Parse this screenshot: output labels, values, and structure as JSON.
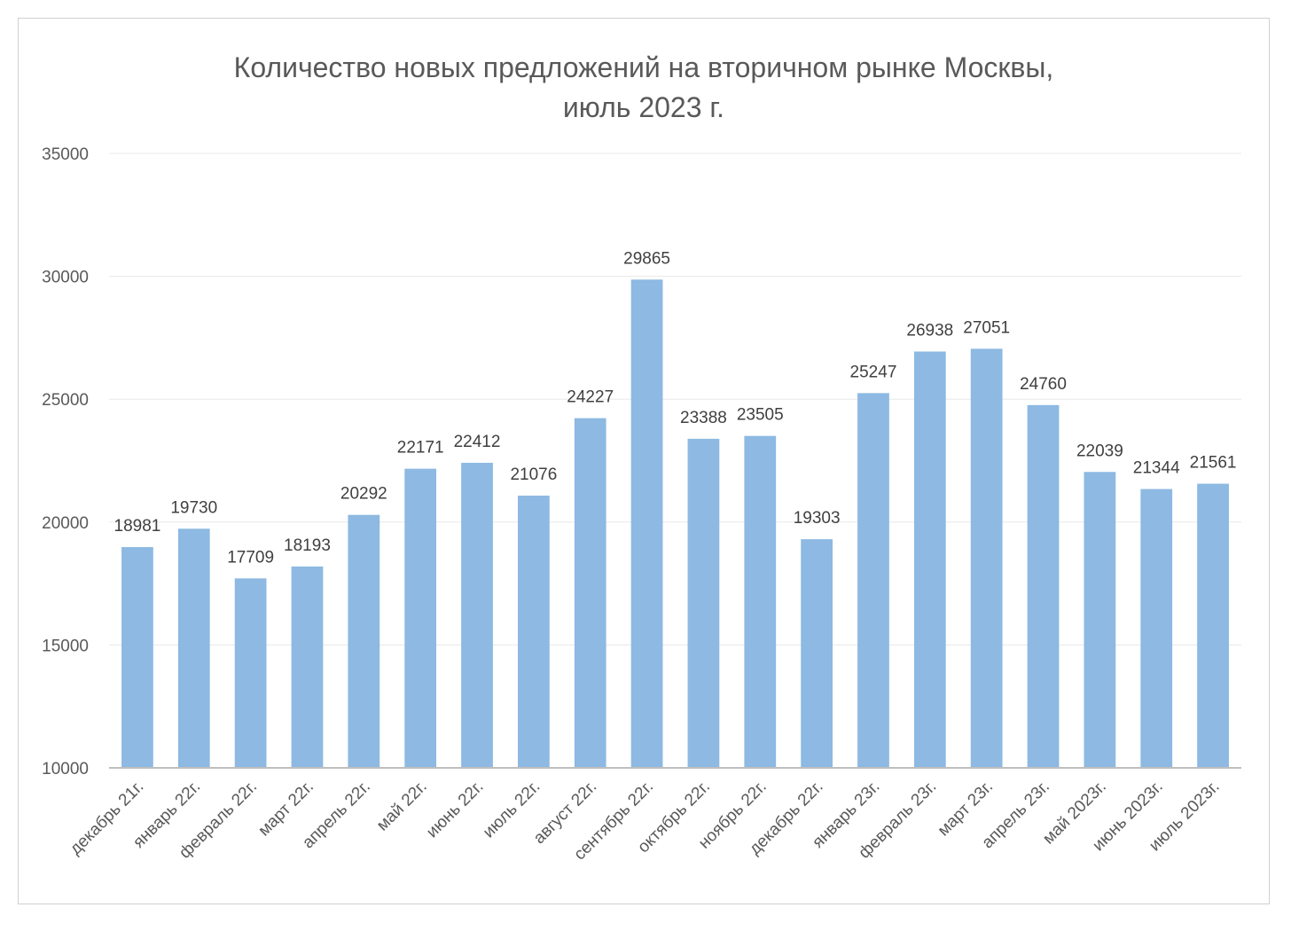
{
  "chart_data": {
    "type": "bar",
    "title_lines": [
      "Количество новых предложений на вторичном рынке Москвы,",
      "июль 2023 г."
    ],
    "categories": [
      "декабрь 21г.",
      "январь 22г.",
      "февраль 22г.",
      "март 22г.",
      "апрель 22г.",
      "май 22г.",
      "июнь 22г.",
      "июль 22г.",
      "август 22г.",
      "сентябрь 22г.",
      "октябрь 22г.",
      "ноябрь 22г.",
      "декабрь 22г.",
      "январь 23г.",
      "февраль 23г.",
      "март 23г.",
      "апрель 23г.",
      "май 2023г.",
      "июнь 2023г.",
      "июль 2023г."
    ],
    "values": [
      18981,
      19730,
      17709,
      18193,
      20292,
      22171,
      22412,
      21076,
      24227,
      29865,
      23388,
      23505,
      19303,
      25247,
      26938,
      27051,
      24760,
      22039,
      21344,
      21561
    ],
    "ylim": [
      10000,
      35000
    ],
    "yticks": [
      10000,
      15000,
      20000,
      25000,
      30000,
      35000
    ],
    "grid": true,
    "legend": "none",
    "bar_color": "#8db9e2",
    "data_labels": true
  }
}
